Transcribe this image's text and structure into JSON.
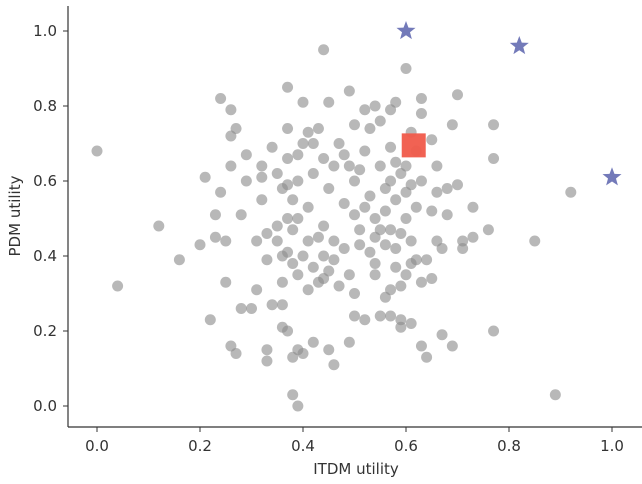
{
  "chart_data": {
    "type": "scatter",
    "title": "",
    "xlabel": "ITDM utility",
    "ylabel": "PDM utility",
    "xlim": [
      -0.06,
      1.06
    ],
    "ylim": [
      -0.06,
      1.06
    ],
    "grid": false,
    "legend": "none",
    "x_ticks": [
      "0.0",
      "0.2",
      "0.4",
      "0.6",
      "0.8",
      "1.0"
    ],
    "y_ticks": [
      "0.0",
      "0.2",
      "0.4",
      "0.6",
      "0.8",
      "1.0"
    ],
    "series": [
      {
        "marker": "circle",
        "color": "#8c8c8c",
        "points": [
          [
            0.0,
            0.68
          ],
          [
            0.04,
            0.32
          ],
          [
            0.12,
            0.48
          ],
          [
            0.16,
            0.39
          ],
          [
            0.2,
            0.43
          ],
          [
            0.21,
            0.61
          ],
          [
            0.22,
            0.23
          ],
          [
            0.23,
            0.51
          ],
          [
            0.23,
            0.45
          ],
          [
            0.24,
            0.82
          ],
          [
            0.24,
            0.57
          ],
          [
            0.25,
            0.44
          ],
          [
            0.25,
            0.33
          ],
          [
            0.26,
            0.79
          ],
          [
            0.26,
            0.72
          ],
          [
            0.26,
            0.64
          ],
          [
            0.26,
            0.16
          ],
          [
            0.27,
            0.14
          ],
          [
            0.27,
            0.74
          ],
          [
            0.28,
            0.51
          ],
          [
            0.28,
            0.26
          ],
          [
            0.29,
            0.67
          ],
          [
            0.29,
            0.6
          ],
          [
            0.3,
            0.26
          ],
          [
            0.31,
            0.44
          ],
          [
            0.31,
            0.31
          ],
          [
            0.32,
            0.64
          ],
          [
            0.32,
            0.61
          ],
          [
            0.32,
            0.55
          ],
          [
            0.33,
            0.46
          ],
          [
            0.33,
            0.39
          ],
          [
            0.33,
            0.15
          ],
          [
            0.33,
            0.12
          ],
          [
            0.34,
            0.69
          ],
          [
            0.34,
            0.27
          ],
          [
            0.35,
            0.48
          ],
          [
            0.35,
            0.44
          ],
          [
            0.35,
            0.62
          ],
          [
            0.36,
            0.58
          ],
          [
            0.36,
            0.4
          ],
          [
            0.36,
            0.33
          ],
          [
            0.36,
            0.27
          ],
          [
            0.36,
            0.21
          ],
          [
            0.37,
            0.85
          ],
          [
            0.37,
            0.74
          ],
          [
            0.37,
            0.66
          ],
          [
            0.37,
            0.59
          ],
          [
            0.37,
            0.5
          ],
          [
            0.37,
            0.41
          ],
          [
            0.37,
            0.2
          ],
          [
            0.38,
            0.55
          ],
          [
            0.38,
            0.47
          ],
          [
            0.38,
            0.38
          ],
          [
            0.38,
            0.13
          ],
          [
            0.38,
            0.03
          ],
          [
            0.39,
            0.67
          ],
          [
            0.39,
            0.6
          ],
          [
            0.39,
            0.5
          ],
          [
            0.39,
            0.35
          ],
          [
            0.39,
            0.15
          ],
          [
            0.39,
            0.0
          ],
          [
            0.4,
            0.81
          ],
          [
            0.4,
            0.7
          ],
          [
            0.4,
            0.4
          ],
          [
            0.4,
            0.14
          ],
          [
            0.41,
            0.73
          ],
          [
            0.41,
            0.53
          ],
          [
            0.41,
            0.44
          ],
          [
            0.41,
            0.31
          ],
          [
            0.42,
            0.7
          ],
          [
            0.42,
            0.62
          ],
          [
            0.42,
            0.37
          ],
          [
            0.42,
            0.17
          ],
          [
            0.43,
            0.74
          ],
          [
            0.43,
            0.45
          ],
          [
            0.43,
            0.33
          ],
          [
            0.44,
            0.95
          ],
          [
            0.44,
            0.66
          ],
          [
            0.44,
            0.48
          ],
          [
            0.44,
            0.4
          ],
          [
            0.44,
            0.34
          ],
          [
            0.45,
            0.81
          ],
          [
            0.45,
            0.58
          ],
          [
            0.45,
            0.36
          ],
          [
            0.45,
            0.15
          ],
          [
            0.46,
            0.64
          ],
          [
            0.46,
            0.44
          ],
          [
            0.46,
            0.39
          ],
          [
            0.46,
            0.11
          ],
          [
            0.47,
            0.7
          ],
          [
            0.47,
            0.32
          ],
          [
            0.48,
            0.67
          ],
          [
            0.48,
            0.54
          ],
          [
            0.48,
            0.42
          ],
          [
            0.49,
            0.84
          ],
          [
            0.49,
            0.64
          ],
          [
            0.49,
            0.35
          ],
          [
            0.49,
            0.17
          ],
          [
            0.5,
            0.75
          ],
          [
            0.5,
            0.6
          ],
          [
            0.5,
            0.51
          ],
          [
            0.5,
            0.3
          ],
          [
            0.5,
            0.24
          ],
          [
            0.51,
            0.63
          ],
          [
            0.51,
            0.47
          ],
          [
            0.51,
            0.43
          ],
          [
            0.52,
            0.79
          ],
          [
            0.52,
            0.68
          ],
          [
            0.52,
            0.53
          ],
          [
            0.52,
            0.23
          ],
          [
            0.53,
            0.74
          ],
          [
            0.53,
            0.56
          ],
          [
            0.53,
            0.41
          ],
          [
            0.54,
            0.8
          ],
          [
            0.54,
            0.5
          ],
          [
            0.54,
            0.45
          ],
          [
            0.54,
            0.38
          ],
          [
            0.54,
            0.35
          ],
          [
            0.55,
            0.76
          ],
          [
            0.55,
            0.64
          ],
          [
            0.55,
            0.47
          ],
          [
            0.55,
            0.24
          ],
          [
            0.56,
            0.58
          ],
          [
            0.56,
            0.52
          ],
          [
            0.56,
            0.43
          ],
          [
            0.56,
            0.29
          ],
          [
            0.57,
            0.79
          ],
          [
            0.57,
            0.69
          ],
          [
            0.57,
            0.6
          ],
          [
            0.57,
            0.47
          ],
          [
            0.57,
            0.31
          ],
          [
            0.57,
            0.24
          ],
          [
            0.58,
            0.81
          ],
          [
            0.58,
            0.65
          ],
          [
            0.58,
            0.55
          ],
          [
            0.58,
            0.42
          ],
          [
            0.58,
            0.37
          ],
          [
            0.59,
            0.62
          ],
          [
            0.59,
            0.46
          ],
          [
            0.59,
            0.32
          ],
          [
            0.59,
            0.23
          ],
          [
            0.59,
            0.21
          ],
          [
            0.6,
            0.9
          ],
          [
            0.6,
            0.64
          ],
          [
            0.6,
            0.57
          ],
          [
            0.6,
            0.5
          ],
          [
            0.6,
            0.35
          ],
          [
            0.61,
            0.73
          ],
          [
            0.61,
            0.59
          ],
          [
            0.61,
            0.44
          ],
          [
            0.61,
            0.38
          ],
          [
            0.61,
            0.22
          ],
          [
            0.62,
            0.68
          ],
          [
            0.62,
            0.53
          ],
          [
            0.62,
            0.39
          ],
          [
            0.63,
            0.82
          ],
          [
            0.63,
            0.78
          ],
          [
            0.63,
            0.6
          ],
          [
            0.63,
            0.33
          ],
          [
            0.63,
            0.16
          ],
          [
            0.64,
            0.39
          ],
          [
            0.64,
            0.13
          ],
          [
            0.65,
            0.71
          ],
          [
            0.65,
            0.52
          ],
          [
            0.65,
            0.34
          ],
          [
            0.66,
            0.64
          ],
          [
            0.66,
            0.57
          ],
          [
            0.66,
            0.44
          ],
          [
            0.67,
            0.42
          ],
          [
            0.67,
            0.19
          ],
          [
            0.68,
            0.58
          ],
          [
            0.68,
            0.51
          ],
          [
            0.69,
            0.75
          ],
          [
            0.69,
            0.16
          ],
          [
            0.7,
            0.83
          ],
          [
            0.7,
            0.59
          ],
          [
            0.71,
            0.44
          ],
          [
            0.71,
            0.42
          ],
          [
            0.73,
            0.53
          ],
          [
            0.73,
            0.45
          ],
          [
            0.76,
            0.47
          ],
          [
            0.77,
            0.75
          ],
          [
            0.77,
            0.66
          ],
          [
            0.77,
            0.2
          ],
          [
            0.85,
            0.44
          ],
          [
            0.89,
            0.03
          ],
          [
            0.92,
            0.57
          ]
        ]
      },
      {
        "marker": "star",
        "color": "#5b63ad",
        "points": [
          [
            0.6,
            1.0
          ],
          [
            0.82,
            0.96
          ],
          [
            1.0,
            0.61
          ]
        ]
      },
      {
        "marker": "square",
        "color": "#f05a4a",
        "points": [
          [
            0.615,
            0.695
          ]
        ]
      }
    ]
  }
}
